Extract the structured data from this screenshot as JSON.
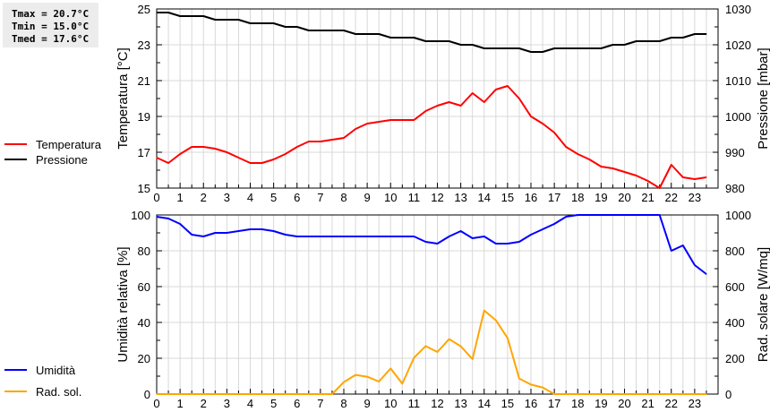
{
  "stats": {
    "tmax": "Tmax = 20.7°C",
    "tmin": "Tmin = 15.0°C",
    "tmed": "Tmed = 17.6°C"
  },
  "chart_data": [
    {
      "type": "line",
      "x": [
        0,
        0.5,
        1,
        1.5,
        2,
        2.5,
        3,
        3.5,
        4,
        4.5,
        5,
        5.5,
        6,
        6.5,
        7,
        7.5,
        8,
        8.5,
        9,
        9.5,
        10,
        10.5,
        11,
        11.5,
        12,
        12.5,
        13,
        13.5,
        14,
        14.5,
        15,
        15.5,
        16,
        16.5,
        17,
        17.5,
        18,
        18.5,
        19,
        19.5,
        20,
        20.5,
        21,
        21.5,
        22,
        22.5,
        23,
        23.5
      ],
      "xticks": [
        "0",
        "1",
        "2",
        "3",
        "4",
        "5",
        "6",
        "7",
        "8",
        "9",
        "10",
        "11",
        "12",
        "13",
        "14",
        "15",
        "16",
        "17",
        "18",
        "19",
        "20",
        "21",
        "22",
        "23"
      ],
      "xlim": [
        0,
        24
      ],
      "ylabel": "Temperatura [°C]",
      "ylim": [
        15,
        25
      ],
      "yticks": [
        "15",
        "17",
        "19",
        "21",
        "23",
        "25"
      ],
      "y2label": "Pressione [mbar]",
      "y2lim": [
        980,
        1030
      ],
      "y2ticks": [
        "980",
        "990",
        "1000",
        "1010",
        "1020",
        "1030"
      ],
      "grid": true,
      "legend_placement": "left",
      "series": [
        {
          "name": "Temperatura",
          "axis": "left",
          "color": "#ff0000",
          "values": [
            16.7,
            16.4,
            16.9,
            17.3,
            17.3,
            17.2,
            17.0,
            16.7,
            16.4,
            16.4,
            16.6,
            16.9,
            17.3,
            17.6,
            17.6,
            17.7,
            17.8,
            18.3,
            18.6,
            18.7,
            18.8,
            18.8,
            18.8,
            19.3,
            19.6,
            19.8,
            19.6,
            20.3,
            19.8,
            20.5,
            20.7,
            20.0,
            19.0,
            18.6,
            18.1,
            17.3,
            16.9,
            16.6,
            16.2,
            16.1,
            15.9,
            15.7,
            15.4,
            15.0,
            16.3,
            15.6,
            15.5,
            15.6
          ]
        },
        {
          "name": "Pressione",
          "axis": "right",
          "color": "#000000",
          "values": [
            1029,
            1029,
            1028,
            1028,
            1028,
            1027,
            1027,
            1027,
            1026,
            1026,
            1026,
            1025,
            1025,
            1024,
            1024,
            1024,
            1024,
            1023,
            1023,
            1023,
            1022,
            1022,
            1022,
            1021,
            1021,
            1021,
            1020,
            1020,
            1019,
            1019,
            1019,
            1019,
            1018,
            1018,
            1019,
            1019,
            1019,
            1019,
            1019,
            1020,
            1020,
            1021,
            1021,
            1021,
            1022,
            1022,
            1023,
            1023
          ]
        }
      ]
    },
    {
      "type": "line",
      "x": [
        0,
        0.5,
        1,
        1.5,
        2,
        2.5,
        3,
        3.5,
        4,
        4.5,
        5,
        5.5,
        6,
        6.5,
        7,
        7.5,
        8,
        8.5,
        9,
        9.5,
        10,
        10.5,
        11,
        11.5,
        12,
        12.5,
        13,
        13.5,
        14,
        14.5,
        15,
        15.5,
        16,
        16.5,
        17,
        17.5,
        18,
        18.5,
        19,
        19.5,
        20,
        20.5,
        21,
        21.5,
        22,
        22.5,
        23,
        23.5
      ],
      "xticks": [
        "0",
        "1",
        "2",
        "3",
        "4",
        "5",
        "6",
        "7",
        "8",
        "9",
        "10",
        "11",
        "12",
        "13",
        "14",
        "15",
        "16",
        "17",
        "18",
        "19",
        "20",
        "21",
        "22",
        "23"
      ],
      "xlim": [
        0,
        24
      ],
      "ylabel": "Umidità relativa [%]",
      "ylim": [
        0,
        100
      ],
      "yticks": [
        "0",
        "20",
        "40",
        "60",
        "80",
        "100"
      ],
      "y2label": "Rad. solare [W/mq]",
      "y2lim": [
        0,
        1000
      ],
      "y2ticks": [
        "0",
        "200",
        "400",
        "600",
        "800",
        "1000"
      ],
      "grid": true,
      "legend_placement": "left",
      "series": [
        {
          "name": "Umidità",
          "axis": "left",
          "color": "#0000ff",
          "values": [
            99,
            98,
            95,
            89,
            88,
            90,
            90,
            91,
            92,
            92,
            91,
            89,
            88,
            88,
            88,
            88,
            88,
            88,
            88,
            88,
            88,
            88,
            88,
            85,
            84,
            88,
            91,
            87,
            88,
            84,
            84,
            85,
            89,
            92,
            95,
            99,
            100,
            100,
            100,
            100,
            100,
            100,
            100,
            100,
            80,
            83,
            72,
            67
          ]
        },
        {
          "name": "Rad. sol.",
          "axis": "right",
          "color": "#ffa500",
          "values": [
            0,
            0,
            0,
            0,
            0,
            0,
            0,
            0,
            0,
            0,
            0,
            0,
            0,
            0,
            0,
            0,
            67,
            107,
            97,
            70,
            143,
            58,
            203,
            268,
            235,
            307,
            267,
            195,
            467,
            412,
            313,
            87,
            53,
            37,
            0,
            0,
            0,
            0,
            0,
            0,
            0,
            0,
            0,
            0,
            0,
            0,
            0,
            0
          ]
        }
      ]
    }
  ]
}
